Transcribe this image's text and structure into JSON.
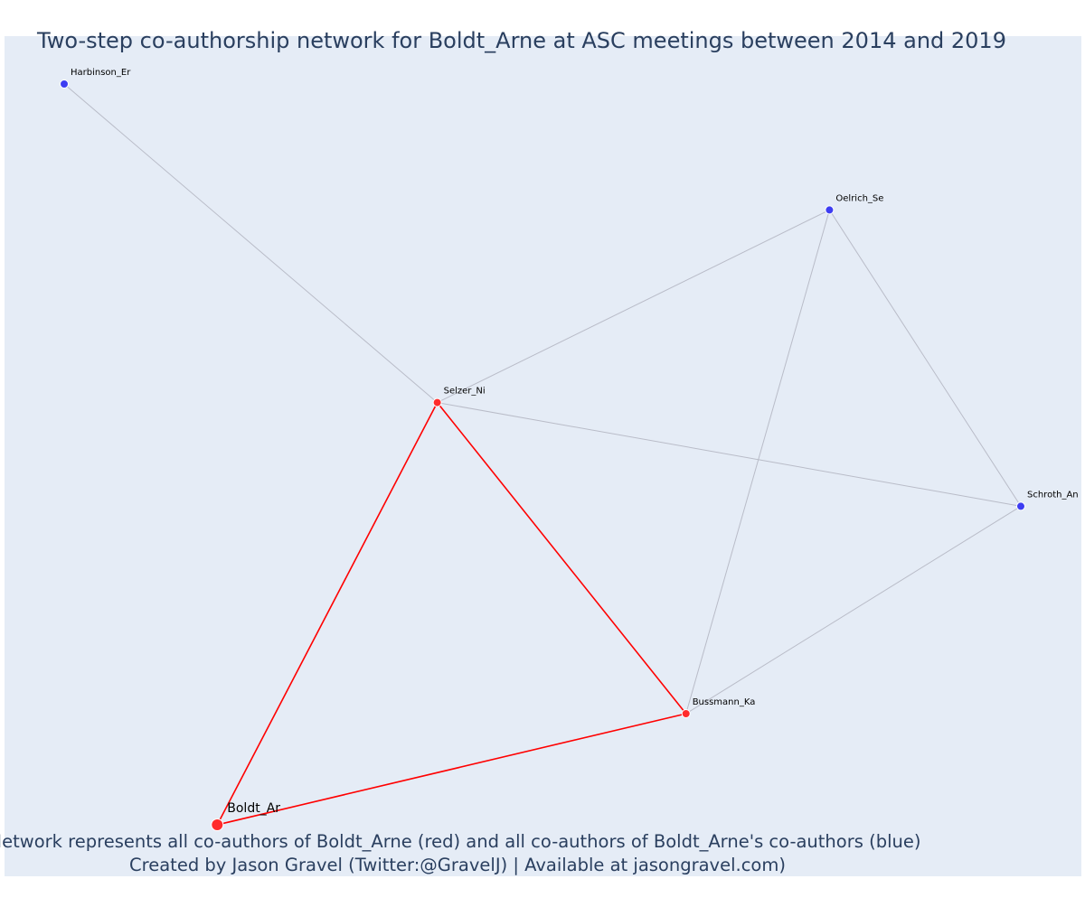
{
  "title": "Two-step co-authorship network for Boldt_Arne at ASC meetings between 2014 and 2019",
  "caption_line1": "Network represents all co-authors of Boldt_Arne (red) and all co-authors of Boldt_Arne's co-authors (blue)",
  "caption_line2": "Created by Jason Gravel (Twitter:@GravelJ) | Available at jasongravel.com)",
  "colors": {
    "plot_background": "#e5ecf6",
    "title_text": "#2a3f5f",
    "focal_edge": "#ff0000",
    "other_edge": "#b9bcc8",
    "red_node": "#ff2b2b",
    "blue_node": "#3d3df2",
    "node_outline": "#ffffff"
  },
  "chart_data": {
    "type": "network",
    "title": "Two-step co-authorship network for Boldt_Arne at ASC meetings between 2014 and 2019",
    "focal": "Boldt_Ar",
    "nodes": [
      {
        "id": "Harbinson_Er",
        "group": "blue",
        "x": 0.0,
        "y": 1.0
      },
      {
        "id": "Oelrich_Se",
        "group": "blue",
        "x": 0.8,
        "y": 0.83
      },
      {
        "id": "Selzer_Ni",
        "group": "red",
        "x": 0.39,
        "y": 0.57
      },
      {
        "id": "Schroth_An",
        "group": "blue",
        "x": 1.0,
        "y": 0.43
      },
      {
        "id": "Bussmann_Ka",
        "group": "red",
        "x": 0.65,
        "y": 0.15
      },
      {
        "id": "Boldt_Ar",
        "group": "focal",
        "x": 0.16,
        "y": 0.0
      }
    ],
    "edges": [
      {
        "source": "Boldt_Ar",
        "target": "Selzer_Ni",
        "highlight": true
      },
      {
        "source": "Boldt_Ar",
        "target": "Bussmann_Ka",
        "highlight": true
      },
      {
        "source": "Selzer_Ni",
        "target": "Bussmann_Ka",
        "highlight": true
      },
      {
        "source": "Harbinson_Er",
        "target": "Selzer_Ni",
        "highlight": false
      },
      {
        "source": "Selzer_Ni",
        "target": "Oelrich_Se",
        "highlight": false
      },
      {
        "source": "Selzer_Ni",
        "target": "Schroth_An",
        "highlight": false
      },
      {
        "source": "Oelrich_Se",
        "target": "Bussmann_Ka",
        "highlight": false
      },
      {
        "source": "Oelrich_Se",
        "target": "Schroth_An",
        "highlight": false
      },
      {
        "source": "Bussmann_Ka",
        "target": "Schroth_An",
        "highlight": false
      }
    ]
  }
}
